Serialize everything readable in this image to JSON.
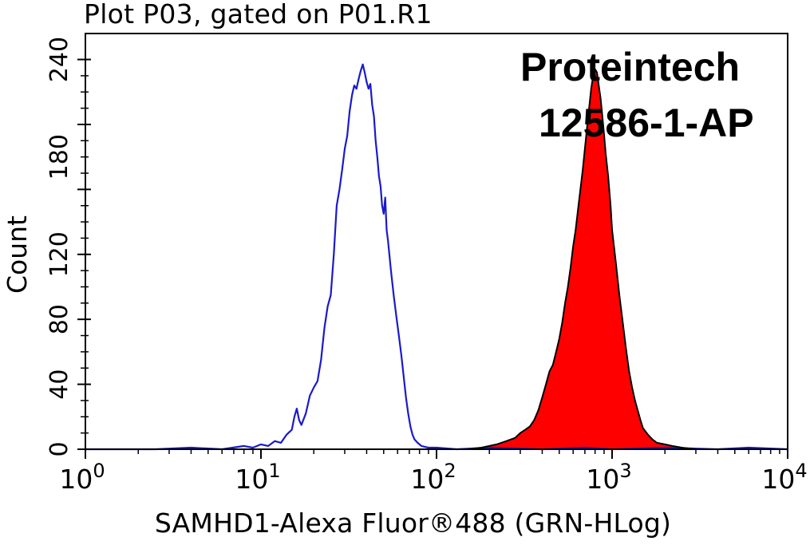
{
  "chart_data": {
    "type": "area",
    "title": "Plot P03, gated on P01.R1",
    "xlabel": "SAMHD1-Alexa Fluor®488 (GRN-HLog)",
    "ylabel": "Count",
    "x_scale": "log",
    "xlim": [
      1,
      10000
    ],
    "ylim": [
      0,
      256
    ],
    "x_ticks": [
      {
        "base": "10",
        "exp": "0",
        "value": 1
      },
      {
        "base": "10",
        "exp": "1",
        "value": 10
      },
      {
        "base": "10",
        "exp": "2",
        "value": 100
      },
      {
        "base": "10",
        "exp": "3",
        "value": 1000
      },
      {
        "base": "10",
        "exp": "4",
        "value": 10000
      }
    ],
    "y_ticks": [
      "0",
      "40",
      "80",
      "120",
      "180",
      "240"
    ],
    "y_tick_values": [
      0,
      40,
      80,
      120,
      180,
      240
    ],
    "grid": false,
    "series": [
      {
        "color": "#1a1acc",
        "fill": "none",
        "points": [
          [
            1,
            0
          ],
          [
            2.5,
            0
          ],
          [
            4,
            1
          ],
          [
            6,
            0
          ],
          [
            8,
            2
          ],
          [
            9,
            1
          ],
          [
            10,
            3
          ],
          [
            11,
            2
          ],
          [
            12,
            5
          ],
          [
            13,
            4
          ],
          [
            14,
            9
          ],
          [
            15,
            12
          ],
          [
            15.5,
            20
          ],
          [
            16,
            25
          ],
          [
            16.5,
            18
          ],
          [
            17,
            15
          ],
          [
            18,
            22
          ],
          [
            19,
            33
          ],
          [
            20,
            38
          ],
          [
            21,
            42
          ],
          [
            22,
            55
          ],
          [
            23,
            75
          ],
          [
            24,
            88
          ],
          [
            25,
            95
          ],
          [
            26,
            120
          ],
          [
            27,
            150
          ],
          [
            28,
            160
          ],
          [
            29,
            172
          ],
          [
            30,
            185
          ],
          [
            31,
            193
          ],
          [
            32,
            208
          ],
          [
            33,
            218
          ],
          [
            34,
            224
          ],
          [
            35,
            222
          ],
          [
            36,
            228
          ],
          [
            37,
            233
          ],
          [
            38,
            237
          ],
          [
            39,
            232
          ],
          [
            40,
            226
          ],
          [
            41,
            222
          ],
          [
            42,
            225
          ],
          [
            43,
            212
          ],
          [
            44,
            205
          ],
          [
            45,
            190
          ],
          [
            46,
            180
          ],
          [
            47,
            168
          ],
          [
            48,
            162
          ],
          [
            49,
            150
          ],
          [
            50,
            145
          ],
          [
            51,
            155
          ],
          [
            52,
            135
          ],
          [
            53,
            128
          ],
          [
            55,
            110
          ],
          [
            57,
            95
          ],
          [
            59,
            82
          ],
          [
            61,
            70
          ],
          [
            63,
            58
          ],
          [
            65,
            45
          ],
          [
            67,
            32
          ],
          [
            69,
            22
          ],
          [
            71,
            14
          ],
          [
            73,
            9
          ],
          [
            75,
            6
          ],
          [
            78,
            4
          ],
          [
            82,
            2
          ],
          [
            90,
            1
          ],
          [
            100,
            1
          ],
          [
            130,
            0
          ],
          [
            200,
            1
          ],
          [
            400,
            0
          ],
          [
            700,
            1
          ],
          [
            1000,
            0
          ],
          [
            2000,
            1
          ],
          [
            4000,
            0
          ],
          [
            6000,
            1
          ],
          [
            10000,
            0
          ]
        ]
      },
      {
        "color": "#ff0000",
        "fill": "#ff0000",
        "points": [
          [
            150,
            0
          ],
          [
            180,
            1
          ],
          [
            200,
            2
          ],
          [
            220,
            3
          ],
          [
            250,
            5
          ],
          [
            280,
            7
          ],
          [
            300,
            10
          ],
          [
            320,
            12
          ],
          [
            340,
            14
          ],
          [
            360,
            18
          ],
          [
            380,
            24
          ],
          [
            400,
            32
          ],
          [
            420,
            40
          ],
          [
            440,
            48
          ],
          [
            460,
            52
          ],
          [
            480,
            60
          ],
          [
            500,
            68
          ],
          [
            520,
            78
          ],
          [
            540,
            90
          ],
          [
            560,
            100
          ],
          [
            580,
            112
          ],
          [
            600,
            125
          ],
          [
            620,
            135
          ],
          [
            640,
            148
          ],
          [
            660,
            160
          ],
          [
            680,
            172
          ],
          [
            700,
            185
          ],
          [
            720,
            198
          ],
          [
            740,
            210
          ],
          [
            760,
            222
          ],
          [
            780,
            230
          ],
          [
            800,
            234
          ],
          [
            820,
            232
          ],
          [
            840,
            224
          ],
          [
            860,
            216
          ],
          [
            880,
            205
          ],
          [
            900,
            194
          ],
          [
            920,
            182
          ],
          [
            950,
            168
          ],
          [
            980,
            150
          ],
          [
            1000,
            135
          ],
          [
            1050,
            115
          ],
          [
            1100,
            95
          ],
          [
            1150,
            78
          ],
          [
            1200,
            62
          ],
          [
            1250,
            48
          ],
          [
            1300,
            38
          ],
          [
            1350,
            30
          ],
          [
            1400,
            24
          ],
          [
            1450,
            18
          ],
          [
            1500,
            13
          ],
          [
            1600,
            9
          ],
          [
            1700,
            6
          ],
          [
            1800,
            4
          ],
          [
            2000,
            3
          ],
          [
            2200,
            2
          ],
          [
            2500,
            1
          ],
          [
            3000,
            0
          ]
        ]
      }
    ]
  },
  "watermark": {
    "line1": "Proteintech",
    "line2": "12586-1-AP"
  }
}
